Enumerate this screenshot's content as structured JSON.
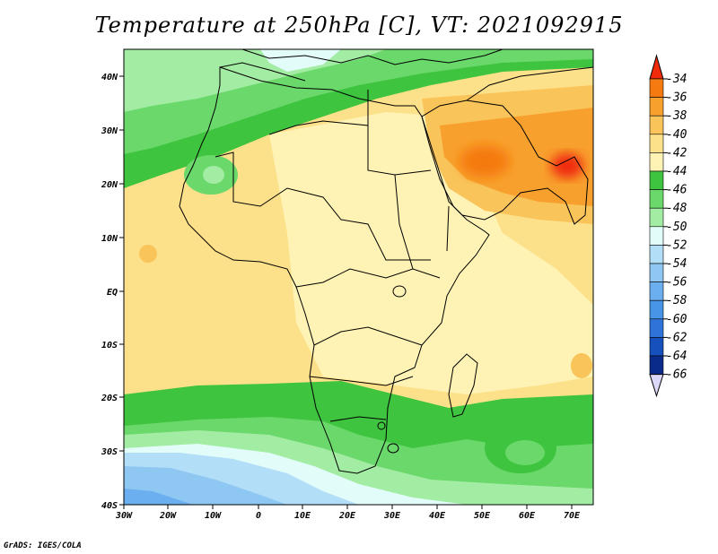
{
  "title": "Temperature at 250hPa [C], VT: 2021092915",
  "credit": "GrADS: IGES/COLA",
  "map": {
    "lon_labels": [
      "30W",
      "20W",
      "10W",
      "0",
      "10E",
      "20E",
      "30E",
      "40E",
      "50E",
      "60E",
      "70E"
    ],
    "lat_labels": [
      "40N",
      "30N",
      "20N",
      "10N",
      "EQ",
      "10S",
      "20S",
      "30S",
      "40S"
    ]
  },
  "colorbar": {
    "labels": [
      "-34",
      "-36",
      "-38",
      "-40",
      "-42",
      "-44",
      "-46",
      "-48",
      "-50",
      "-52",
      "-54",
      "-56",
      "-58",
      "-60",
      "-62",
      "-64",
      "-66"
    ],
    "colors": [
      "#f02a0a",
      "#f57a0f",
      "#f8a02e",
      "#f9c45a",
      "#fde08a",
      "#fef3b4",
      "#3ec43e",
      "#6ad86a",
      "#a3eca3",
      "#e2fcf9",
      "#b2def8",
      "#8fc7f3",
      "#6baff0",
      "#4894e6",
      "#2f72d8",
      "#1650bd",
      "#0a2b8a",
      "#0a1468"
    ],
    "top_color": "#f02a0a",
    "bottom_color": "#dcd8f8"
  }
}
